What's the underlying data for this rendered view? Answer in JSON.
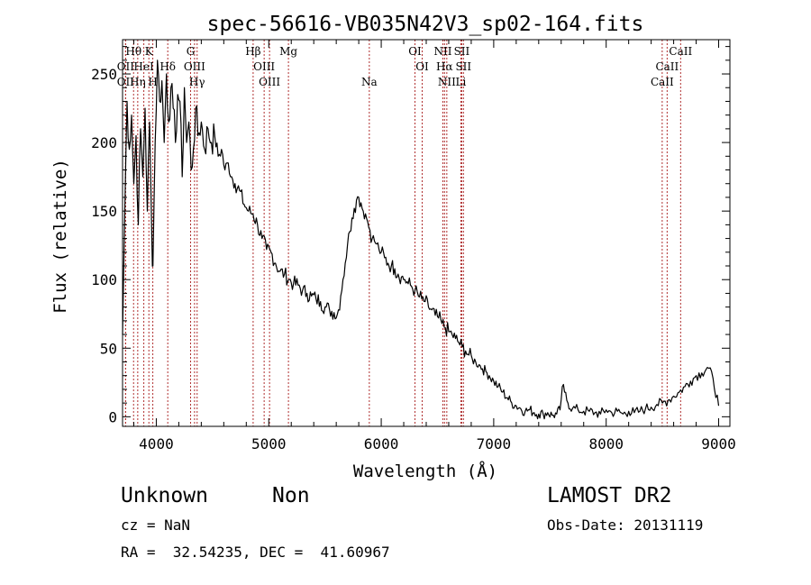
{
  "chart_data": {
    "type": "line",
    "title": "spec-56616-VB035N42V3_sp02-164.fits",
    "xlabel": "Wavelength (Å)",
    "ylabel": "Flux (relative)",
    "xlim": [
      3700,
      9100
    ],
    "ylim": [
      -7,
      275
    ],
    "xticks": [
      4000,
      5000,
      6000,
      7000,
      8000,
      9000
    ],
    "yticks": [
      0,
      50,
      100,
      150,
      200,
      250
    ],
    "series": [
      {
        "color": "#000000",
        "x": [
          3700,
          3720,
          3740,
          3760,
          3780,
          3800,
          3820,
          3840,
          3860,
          3880,
          3900,
          3920,
          3940,
          3960,
          3970,
          3990,
          4010,
          4030,
          4050,
          4070,
          4090,
          4110,
          4130,
          4150,
          4170,
          4190,
          4210,
          4230,
          4250,
          4270,
          4290,
          4310,
          4330,
          4350,
          4370,
          4400,
          4430,
          4460,
          4490,
          4520,
          4550,
          4580,
          4610,
          4640,
          4670,
          4700,
          4740,
          4780,
          4820,
          4860,
          4900,
          4940,
          4980,
          5020,
          5060,
          5100,
          5140,
          5180,
          5220,
          5260,
          5300,
          5340,
          5380,
          5420,
          5460,
          5500,
          5540,
          5580,
          5600,
          5620,
          5640,
          5660,
          5680,
          5700,
          5720,
          5740,
          5760,
          5780,
          5800,
          5820,
          5840,
          5860,
          5880,
          5900,
          5920,
          5940,
          5960,
          5980,
          6000,
          6030,
          6060,
          6090,
          6120,
          6150,
          6180,
          6210,
          6240,
          6270,
          6300,
          6330,
          6360,
          6390,
          6420,
          6450,
          6480,
          6510,
          6540,
          6570,
          6600,
          6630,
          6660,
          6690,
          6720,
          6750,
          6780,
          6810,
          6840,
          6870,
          6900,
          6930,
          6960,
          7000,
          7040,
          7080,
          7120,
          7160,
          7200,
          7240,
          7280,
          7320,
          7360,
          7400,
          7440,
          7480,
          7520,
          7560,
          7590,
          7610,
          7630,
          7660,
          7700,
          7750,
          7800,
          7850,
          7900,
          7950,
          8000,
          8050,
          8100,
          8150,
          8200,
          8250,
          8300,
          8350,
          8400,
          8450,
          8500,
          8550,
          8600,
          8650,
          8700,
          8750,
          8800,
          8850,
          8900,
          8950,
          9000
        ],
        "y": [
          60,
          150,
          230,
          195,
          220,
          170,
          205,
          140,
          210,
          175,
          225,
          150,
          215,
          130,
          110,
          200,
          260,
          230,
          245,
          200,
          250,
          215,
          240,
          225,
          200,
          235,
          230,
          175,
          240,
          200,
          215,
          180,
          195,
          225,
          205,
          215,
          195,
          210,
          200,
          205,
          190,
          195,
          180,
          185,
          175,
          170,
          165,
          155,
          150,
          148,
          140,
          130,
          122,
          120,
          112,
          106,
          104,
          100,
          97,
          96,
          92,
          90,
          88,
          86,
          84,
          80,
          78,
          76,
          72,
          78,
          88,
          100,
          112,
          125,
          135,
          145,
          152,
          158,
          160,
          156,
          150,
          148,
          142,
          136,
          130,
          128,
          126,
          122,
          120,
          116,
          112,
          110,
          108,
          104,
          102,
          100,
          97,
          95,
          92,
          88,
          86,
          84,
          80,
          78,
          74,
          72,
          68,
          65,
          62,
          60,
          57,
          54,
          51,
          48,
          45,
          42,
          40,
          38,
          35,
          33,
          30,
          26,
          22,
          18,
          14,
          10,
          8,
          6,
          4,
          5,
          3,
          2,
          2,
          3,
          1,
          2,
          5,
          22,
          18,
          10,
          6,
          5,
          4,
          4,
          3,
          2,
          5,
          3,
          4,
          2,
          4,
          3,
          4,
          6,
          7,
          9,
          10,
          12,
          15,
          18,
          22,
          26,
          30,
          32,
          36,
          28,
          8
        ]
      }
    ],
    "lines": [
      {
        "label": "Hθ",
        "wl": 3798,
        "row": 1
      },
      {
        "label": "OII",
        "wl": 3727,
        "row": 2
      },
      {
        "label": "OII",
        "wl": 3727,
        "row": 3
      },
      {
        "label": "Hη",
        "wl": 3835,
        "row": 3
      },
      {
        "label": "HeI",
        "wl": 3889,
        "row": 2
      },
      {
        "label": "K",
        "wl": 3934,
        "row": 1
      },
      {
        "label": "H",
        "wl": 3969,
        "row": 3
      },
      {
        "label": "Hδ",
        "wl": 4102,
        "row": 2
      },
      {
        "label": "G",
        "wl": 4305,
        "row": 1
      },
      {
        "label": "OIII",
        "wl": 4340,
        "row": 2
      },
      {
        "label": "Hγ",
        "wl": 4363,
        "row": 3
      },
      {
        "label": "Hβ",
        "wl": 4861,
        "row": 1
      },
      {
        "label": "OIII",
        "wl": 4959,
        "row": 2
      },
      {
        "label": "OIII",
        "wl": 5007,
        "row": 3
      },
      {
        "label": "Mg",
        "wl": 5175,
        "row": 1
      },
      {
        "label": "Na",
        "wl": 5894,
        "row": 3
      },
      {
        "label": "OI",
        "wl": 6300,
        "row": 1
      },
      {
        "label": "OI",
        "wl": 6364,
        "row": 2
      },
      {
        "label": "NII",
        "wl": 6548,
        "row": 1
      },
      {
        "label": "Hα",
        "wl": 6563,
        "row": 2
      },
      {
        "label": "NII",
        "wl": 6583,
        "row": 3
      },
      {
        "label": "SII",
        "wl": 6716,
        "row": 1
      },
      {
        "label": "SII",
        "wl": 6731,
        "row": 2
      },
      {
        "label": "Li",
        "wl": 6708,
        "row": 3
      },
      {
        "label": "CaII",
        "wl": 8662,
        "row": 1
      },
      {
        "label": "CaII",
        "wl": 8542,
        "row": 2
      },
      {
        "label": "CaII",
        "wl": 8498,
        "row": 3
      }
    ]
  },
  "info": {
    "class_text": "Unknown",
    "subclass_text": "Non",
    "survey_text": "LAMOST DR2",
    "cz_text": "cz = NaN",
    "obs_date_text": "Obs-Date: 20131119",
    "radec_text": "RA =  32.54235, DEC =  41.60967"
  }
}
